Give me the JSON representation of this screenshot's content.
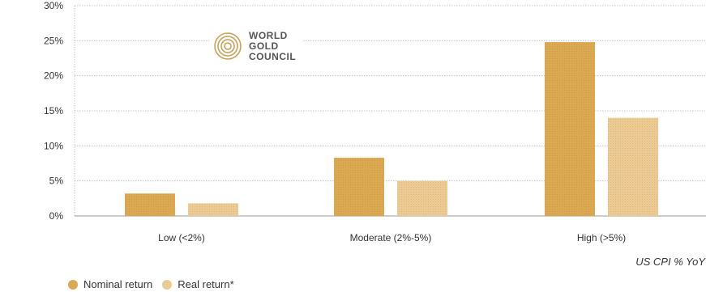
{
  "logo": {
    "lines": [
      "WORLD",
      "GOLD",
      "COUNCIL"
    ]
  },
  "chart_data": {
    "type": "bar",
    "categories": [
      "Low (<2%)",
      "Moderate (2%-5%)",
      "High (>5%)"
    ],
    "series": [
      {
        "name": "Nominal return",
        "values": [
          3.2,
          8.3,
          24.8
        ],
        "color": "#DBA952"
      },
      {
        "name": "Real return*",
        "values": [
          1.8,
          5.0,
          14.0
        ],
        "color": "#EBCB93"
      }
    ],
    "xlabel": "US CPI % YoY",
    "ylabel": "",
    "ylim": [
      0,
      30
    ],
    "yticks": [
      "0%",
      "5%",
      "10%",
      "15%",
      "20%",
      "25%",
      "30%"
    ],
    "ytick_values": [
      0,
      5,
      10,
      15,
      20,
      25,
      30
    ],
    "grid": true,
    "legend": "bottom-left"
  }
}
